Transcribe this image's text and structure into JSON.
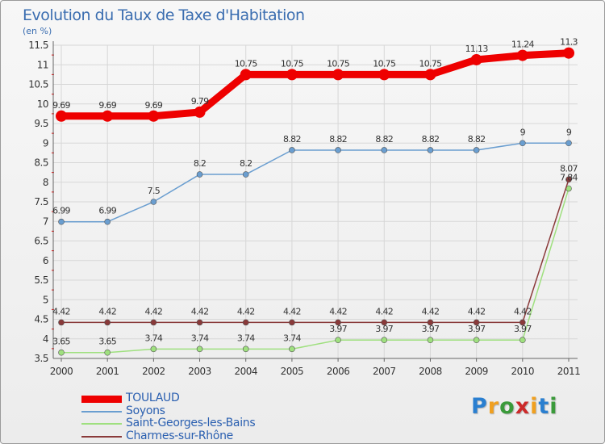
{
  "chart_data": {
    "type": "line",
    "title": "Evolution du Taux de Taxe d'Habitation",
    "subtitle": "(en %)",
    "categories": [
      "2000",
      "2001",
      "2002",
      "2003",
      "2004",
      "2005",
      "2006",
      "2007",
      "2008",
      "2009",
      "2010",
      "2011"
    ],
    "ylim": [
      3.5,
      11.5
    ],
    "yticks": [
      "3.5",
      "4",
      "4.5",
      "5",
      "5.5",
      "6",
      "6.5",
      "7",
      "7.5",
      "8",
      "8.5",
      "9",
      "9.5",
      "10",
      "10.5",
      "11",
      "11.5"
    ],
    "grid": true,
    "legend_position": "bottom-left",
    "series": [
      {
        "name": "TOULAUD",
        "color": "#ee0000",
        "emphasis": true,
        "values": [
          9.69,
          9.69,
          9.69,
          9.79,
          10.75,
          10.75,
          10.75,
          10.75,
          10.75,
          11.13,
          11.24,
          11.3
        ],
        "labels": [
          "9.69",
          "9.69",
          "9.69",
          "9.79",
          "10.75",
          "10.75",
          "10.75",
          "10.75",
          "10.75",
          "11.13",
          "11.24",
          "11.3"
        ]
      },
      {
        "name": "Soyons",
        "color": "#6a9ed0",
        "values": [
          6.99,
          6.99,
          7.5,
          8.2,
          8.2,
          8.82,
          8.82,
          8.82,
          8.82,
          8.82,
          9,
          9
        ],
        "labels": [
          "6.99",
          "6.99",
          "7.5",
          "8.2",
          "8.2",
          "8.82",
          "8.82",
          "8.82",
          "8.82",
          "8.82",
          "9",
          "9"
        ]
      },
      {
        "name": "Saint-Georges-les-Bains",
        "color": "#9fe07f",
        "values": [
          3.65,
          3.65,
          3.74,
          3.74,
          3.74,
          3.74,
          3.97,
          3.97,
          3.97,
          3.97,
          3.97,
          7.84
        ],
        "labels": [
          "3.65",
          "3.65",
          "3.74",
          "3.74",
          "3.74",
          "3.74",
          "3.97",
          "3.97",
          "3.97",
          "3.97",
          "3.97",
          "7.84"
        ]
      },
      {
        "name": "Charmes-sur-Rhône",
        "color": "#8a3a3a",
        "values": [
          4.42,
          4.42,
          4.42,
          4.42,
          4.42,
          4.42,
          4.42,
          4.42,
          4.42,
          4.42,
          4.42,
          8.07
        ],
        "labels": [
          "4.42",
          "4.42",
          "4.42",
          "4.42",
          "4.42",
          "4.42",
          "4.42",
          "4.42",
          "4.42",
          "4.42",
          "4.42",
          "8.07"
        ]
      }
    ]
  },
  "logo": {
    "letters": [
      "P",
      "r",
      "o",
      "x",
      "i",
      "t",
      "i"
    ],
    "colors": [
      "#2a7fd0",
      "#f0a020",
      "#3a9a3a",
      "#cc2a2a",
      "#f0a020",
      "#2a7fd0",
      "#3a9a3a"
    ]
  }
}
